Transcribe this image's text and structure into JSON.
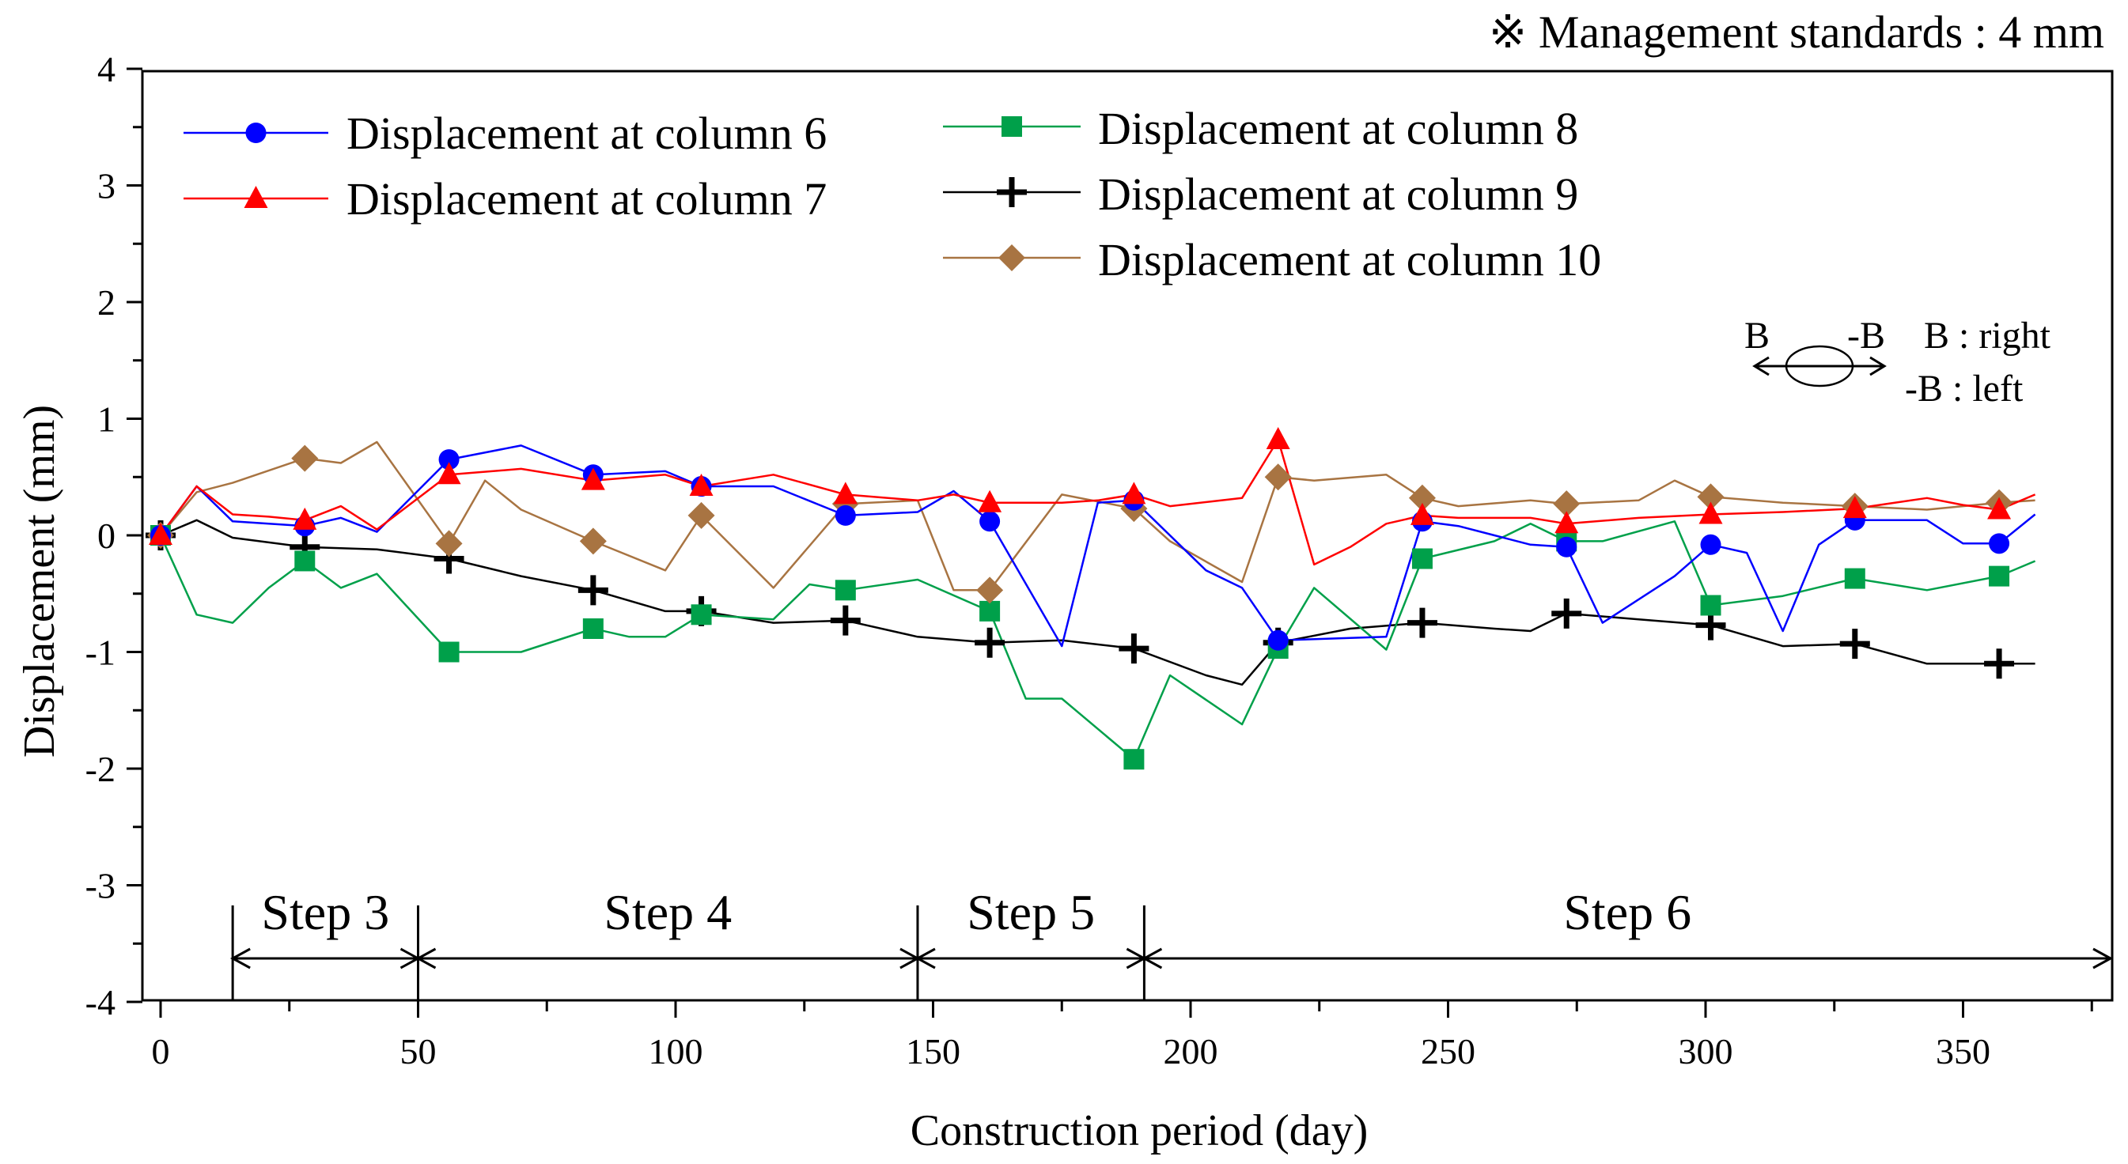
{
  "chart_data": {
    "type": "line",
    "title": "",
    "note": "※ Management standards : 4 mm",
    "xlabel": "Construction period (day)",
    "ylabel": "Displacement (mm)",
    "xlim": [
      -5,
      380
    ],
    "ylim": [
      -4,
      4
    ],
    "xticks": [
      0,
      50,
      100,
      150,
      200,
      250,
      300,
      350
    ],
    "yticks": [
      4,
      3,
      2,
      1,
      0,
      -1,
      -2,
      -3,
      -4
    ],
    "direction": {
      "b": "B",
      "minus_b": "-B",
      "right_note": "B : right",
      "left_note": "-B : left"
    },
    "steps": [
      {
        "label": "Step 3",
        "start": 14,
        "end": 50
      },
      {
        "label": "Step 4",
        "start": 50,
        "end": 147
      },
      {
        "label": "Step 5",
        "start": 147,
        "end": 191
      },
      {
        "label": "Step 6",
        "start": 191,
        "end": 380
      }
    ],
    "series": [
      {
        "name": "Displacement at column 6",
        "color": "#0000ff",
        "marker": "circle",
        "line": [
          [
            0,
            0
          ],
          [
            7,
            0.42
          ],
          [
            14,
            0.12
          ],
          [
            21,
            0.1
          ],
          [
            28,
            0.08
          ],
          [
            35,
            0.15
          ],
          [
            42,
            0.03
          ],
          [
            56,
            0.65
          ],
          [
            70,
            0.77
          ],
          [
            84,
            0.52
          ],
          [
            98,
            0.55
          ],
          [
            105,
            0.42
          ],
          [
            119,
            0.42
          ],
          [
            133,
            0.17
          ],
          [
            147,
            0.2
          ],
          [
            154,
            0.38
          ],
          [
            161,
            0.12
          ],
          [
            175,
            -0.95
          ],
          [
            182,
            0.28
          ],
          [
            189,
            0.3
          ],
          [
            203,
            -0.3
          ],
          [
            210,
            -0.45
          ],
          [
            217,
            -0.9
          ],
          [
            231,
            -0.88
          ],
          [
            238,
            -0.87
          ],
          [
            245,
            0.12
          ],
          [
            252,
            0.08
          ],
          [
            259,
            0.0
          ],
          [
            266,
            -0.08
          ],
          [
            273,
            -0.1
          ],
          [
            280,
            -0.75
          ],
          [
            294,
            -0.35
          ],
          [
            301,
            -0.08
          ],
          [
            308,
            -0.15
          ],
          [
            315,
            -0.82
          ],
          [
            322,
            -0.08
          ],
          [
            329,
            0.13
          ],
          [
            343,
            0.13
          ],
          [
            350,
            -0.07
          ],
          [
            357,
            -0.07
          ],
          [
            364,
            0.18
          ]
        ],
        "markers": [
          [
            0,
            0
          ],
          [
            28,
            0.08
          ],
          [
            56,
            0.65
          ],
          [
            84,
            0.52
          ],
          [
            105,
            0.42
          ],
          [
            133,
            0.17
          ],
          [
            161,
            0.12
          ],
          [
            189,
            0.3
          ],
          [
            217,
            -0.9
          ],
          [
            245,
            0.12
          ],
          [
            273,
            -0.1
          ],
          [
            301,
            -0.08
          ],
          [
            329,
            0.13
          ],
          [
            357,
            -0.07
          ]
        ]
      },
      {
        "name": "Displacement at column 7",
        "color": "#ff0000",
        "marker": "triangle",
        "line": [
          [
            0,
            0
          ],
          [
            7,
            0.42
          ],
          [
            14,
            0.18
          ],
          [
            21,
            0.16
          ],
          [
            28,
            0.13
          ],
          [
            35,
            0.25
          ],
          [
            42,
            0.05
          ],
          [
            56,
            0.52
          ],
          [
            70,
            0.57
          ],
          [
            84,
            0.47
          ],
          [
            98,
            0.52
          ],
          [
            105,
            0.42
          ],
          [
            119,
            0.52
          ],
          [
            133,
            0.35
          ],
          [
            147,
            0.3
          ],
          [
            154,
            0.35
          ],
          [
            161,
            0.28
          ],
          [
            175,
            0.28
          ],
          [
            182,
            0.3
          ],
          [
            189,
            0.35
          ],
          [
            196,
            0.25
          ],
          [
            210,
            0.32
          ],
          [
            217,
            0.82
          ],
          [
            224,
            -0.25
          ],
          [
            231,
            -0.1
          ],
          [
            238,
            0.1
          ],
          [
            245,
            0.17
          ],
          [
            252,
            0.15
          ],
          [
            266,
            0.15
          ],
          [
            273,
            0.1
          ],
          [
            287,
            0.15
          ],
          [
            301,
            0.18
          ],
          [
            315,
            0.2
          ],
          [
            329,
            0.23
          ],
          [
            343,
            0.32
          ],
          [
            350,
            0.26
          ],
          [
            357,
            0.22
          ],
          [
            364,
            0.35
          ]
        ],
        "markers": [
          [
            0,
            0
          ],
          [
            28,
            0.13
          ],
          [
            56,
            0.52
          ],
          [
            84,
            0.47
          ],
          [
            105,
            0.42
          ],
          [
            133,
            0.35
          ],
          [
            161,
            0.28
          ],
          [
            189,
            0.35
          ],
          [
            217,
            0.82
          ],
          [
            245,
            0.17
          ],
          [
            273,
            0.1
          ],
          [
            301,
            0.18
          ],
          [
            329,
            0.23
          ],
          [
            357,
            0.22
          ]
        ]
      },
      {
        "name": "Displacement at column 8",
        "color": "#00a04a",
        "marker": "square",
        "line": [
          [
            0,
            0
          ],
          [
            7,
            -0.68
          ],
          [
            14,
            -0.75
          ],
          [
            21,
            -0.45
          ],
          [
            28,
            -0.22
          ],
          [
            35,
            -0.45
          ],
          [
            42,
            -0.33
          ],
          [
            56,
            -1.0
          ],
          [
            70,
            -1.0
          ],
          [
            84,
            -0.8
          ],
          [
            91,
            -0.87
          ],
          [
            98,
            -0.87
          ],
          [
            105,
            -0.68
          ],
          [
            119,
            -0.72
          ],
          [
            126,
            -0.42
          ],
          [
            133,
            -0.47
          ],
          [
            147,
            -0.38
          ],
          [
            161,
            -0.65
          ],
          [
            168,
            -1.4
          ],
          [
            175,
            -1.4
          ],
          [
            189,
            -1.92
          ],
          [
            196,
            -1.2
          ],
          [
            210,
            -1.62
          ],
          [
            217,
            -0.97
          ],
          [
            224,
            -0.45
          ],
          [
            238,
            -0.98
          ],
          [
            245,
            -0.2
          ],
          [
            259,
            -0.05
          ],
          [
            266,
            0.1
          ],
          [
            273,
            -0.05
          ],
          [
            280,
            -0.05
          ],
          [
            294,
            0.12
          ],
          [
            301,
            -0.6
          ],
          [
            315,
            -0.52
          ],
          [
            329,
            -0.37
          ],
          [
            343,
            -0.47
          ],
          [
            357,
            -0.35
          ],
          [
            364,
            -0.22
          ]
        ],
        "markers": [
          [
            0,
            0
          ],
          [
            28,
            -0.22
          ],
          [
            56,
            -1.0
          ],
          [
            84,
            -0.8
          ],
          [
            105,
            -0.68
          ],
          [
            133,
            -0.47
          ],
          [
            161,
            -0.65
          ],
          [
            189,
            -1.92
          ],
          [
            217,
            -0.97
          ],
          [
            245,
            -0.2
          ],
          [
            273,
            -0.05
          ],
          [
            301,
            -0.6
          ],
          [
            329,
            -0.37
          ],
          [
            357,
            -0.35
          ]
        ]
      },
      {
        "name": "Displacement at column 9",
        "color": "#000000",
        "marker": "plus",
        "line": [
          [
            0,
            0
          ],
          [
            7,
            0.13
          ],
          [
            14,
            -0.02
          ],
          [
            28,
            -0.1
          ],
          [
            42,
            -0.12
          ],
          [
            56,
            -0.2
          ],
          [
            70,
            -0.35
          ],
          [
            84,
            -0.47
          ],
          [
            98,
            -0.65
          ],
          [
            105,
            -0.65
          ],
          [
            119,
            -0.75
          ],
          [
            133,
            -0.73
          ],
          [
            147,
            -0.87
          ],
          [
            161,
            -0.92
          ],
          [
            175,
            -0.9
          ],
          [
            189,
            -0.97
          ],
          [
            203,
            -1.2
          ],
          [
            210,
            -1.28
          ],
          [
            217,
            -0.92
          ],
          [
            231,
            -0.8
          ],
          [
            245,
            -0.75
          ],
          [
            259,
            -0.8
          ],
          [
            266,
            -0.82
          ],
          [
            273,
            -0.67
          ],
          [
            287,
            -0.72
          ],
          [
            301,
            -0.77
          ],
          [
            315,
            -0.95
          ],
          [
            329,
            -0.93
          ],
          [
            343,
            -1.1
          ],
          [
            357,
            -1.1
          ],
          [
            364,
            -1.1
          ]
        ],
        "markers": [
          [
            0,
            0
          ],
          [
            28,
            -0.1
          ],
          [
            56,
            -0.2
          ],
          [
            84,
            -0.47
          ],
          [
            105,
            -0.65
          ],
          [
            133,
            -0.73
          ],
          [
            161,
            -0.92
          ],
          [
            189,
            -0.97
          ],
          [
            217,
            -0.92
          ],
          [
            245,
            -0.75
          ],
          [
            273,
            -0.67
          ],
          [
            301,
            -0.77
          ],
          [
            329,
            -0.93
          ],
          [
            357,
            -1.1
          ]
        ]
      },
      {
        "name": "Displacement at column 10",
        "color": "#a87442",
        "marker": "diamond",
        "line": [
          [
            0,
            0
          ],
          [
            7,
            0.37
          ],
          [
            14,
            0.45
          ],
          [
            28,
            0.66
          ],
          [
            35,
            0.62
          ],
          [
            42,
            0.8
          ],
          [
            56,
            -0.07
          ],
          [
            63,
            0.47
          ],
          [
            70,
            0.22
          ],
          [
            84,
            -0.05
          ],
          [
            98,
            -0.3
          ],
          [
            105,
            0.17
          ],
          [
            119,
            -0.45
          ],
          [
            133,
            0.27
          ],
          [
            147,
            0.3
          ],
          [
            154,
            -0.47
          ],
          [
            161,
            -0.47
          ],
          [
            175,
            0.35
          ],
          [
            189,
            0.23
          ],
          [
            196,
            -0.05
          ],
          [
            210,
            -0.4
          ],
          [
            217,
            0.5
          ],
          [
            224,
            0.47
          ],
          [
            238,
            0.52
          ],
          [
            245,
            0.32
          ],
          [
            252,
            0.25
          ],
          [
            266,
            0.3
          ],
          [
            273,
            0.27
          ],
          [
            287,
            0.3
          ],
          [
            294,
            0.47
          ],
          [
            301,
            0.33
          ],
          [
            315,
            0.28
          ],
          [
            329,
            0.25
          ],
          [
            343,
            0.22
          ],
          [
            357,
            0.28
          ],
          [
            364,
            0.3
          ]
        ],
        "markers": [
          [
            0,
            0
          ],
          [
            28,
            0.66
          ],
          [
            56,
            -0.07
          ],
          [
            84,
            -0.05
          ],
          [
            105,
            0.17
          ],
          [
            133,
            0.27
          ],
          [
            161,
            -0.47
          ],
          [
            189,
            0.23
          ],
          [
            217,
            0.5
          ],
          [
            245,
            0.32
          ],
          [
            273,
            0.27
          ],
          [
            301,
            0.33
          ],
          [
            329,
            0.25
          ],
          [
            357,
            0.28
          ]
        ]
      }
    ]
  }
}
